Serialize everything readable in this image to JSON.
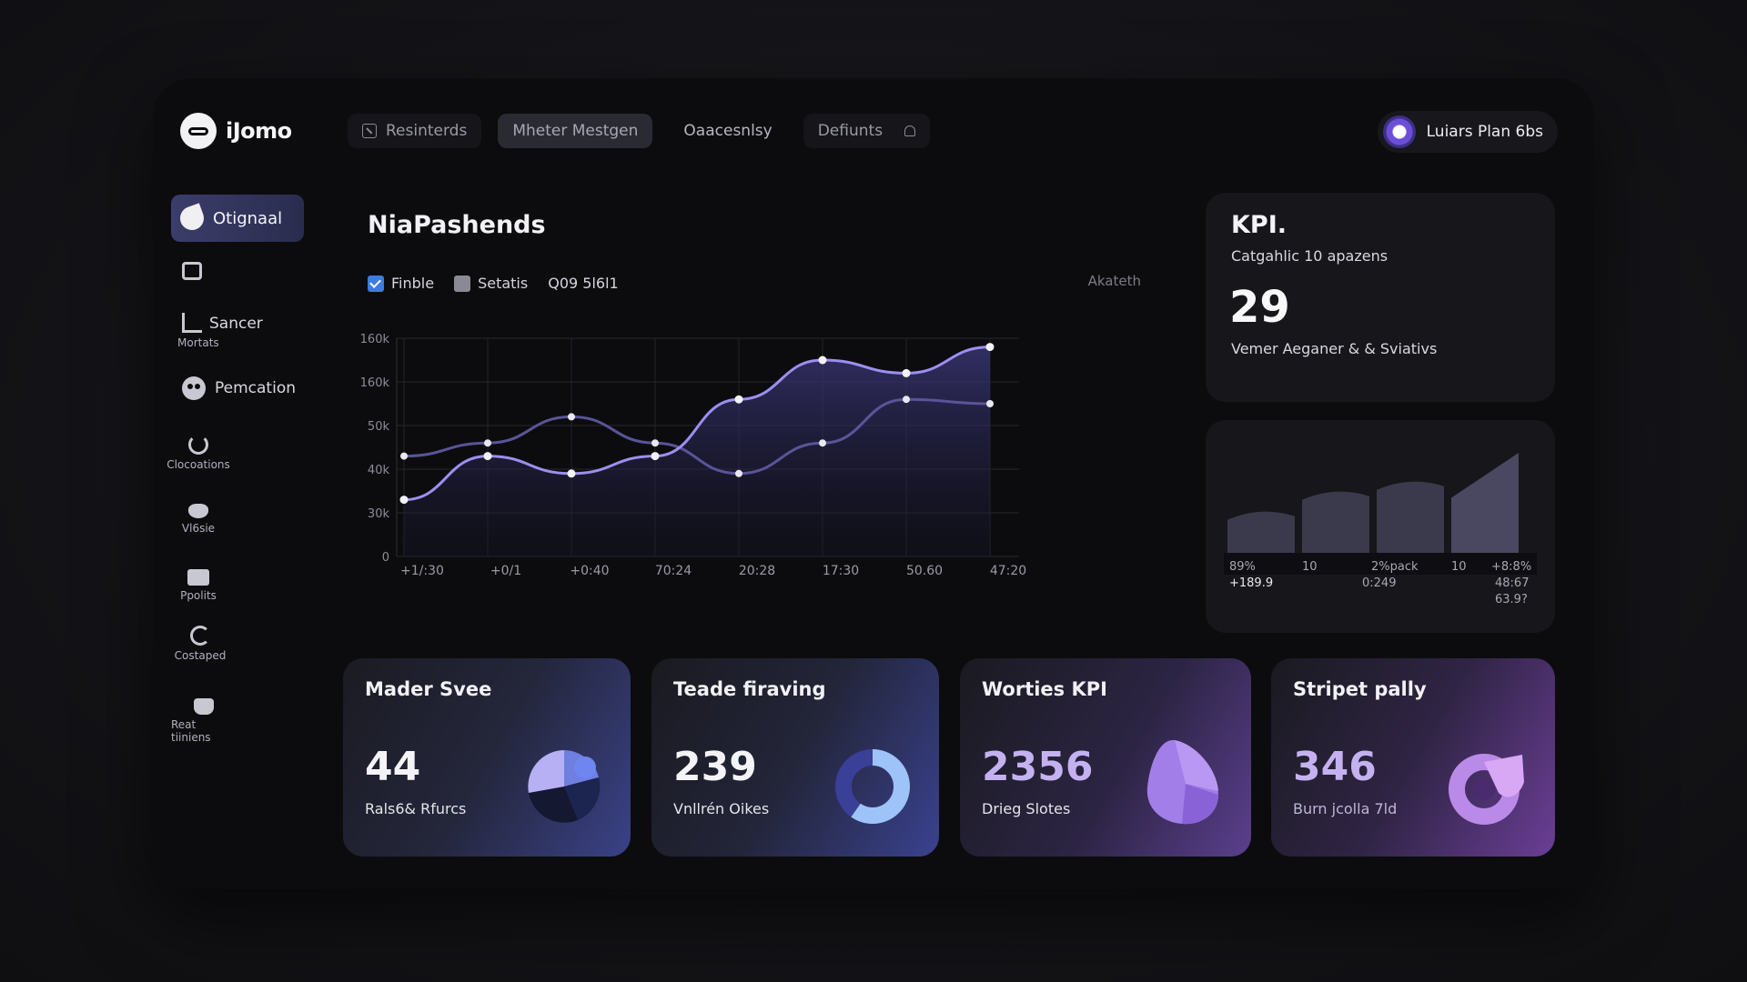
{
  "logo": {
    "text": "iJomo"
  },
  "nav": {
    "tabs": [
      {
        "label": "Resinterds"
      },
      {
        "label": "Mheter Mestgen"
      },
      {
        "label": "Oaacesnlsy"
      },
      {
        "label": "Defiunts"
      }
    ]
  },
  "user": {
    "name": "Luiars Plan 6bs"
  },
  "sidebar": {
    "active": "Otignaal",
    "items": [
      {
        "label": "",
        "icon": "box-icon"
      },
      {
        "label": "Sancer",
        "sub": "Mortats",
        "icon": "chart-icon"
      },
      {
        "label": "Pemcation",
        "icon": "face-icon"
      },
      {
        "label": "",
        "sub": "Clocoations",
        "icon": "power-icon"
      },
      {
        "label": "",
        "sub": "Vl6sie",
        "icon": "paw-icon"
      },
      {
        "label": "",
        "sub": "Ppolits",
        "icon": "bag-icon"
      },
      {
        "label": "",
        "sub": "Costaped",
        "icon": "e-icon"
      },
      {
        "label": "",
        "sub": "Reat tiiniens",
        "icon": "basket-icon"
      }
    ]
  },
  "main": {
    "title": "NiaPashends",
    "legend": [
      {
        "label": "Finble",
        "checked": true
      },
      {
        "label": "Setatis",
        "checked": false
      },
      {
        "label": "Q09 5l6l1"
      }
    ],
    "corner_label": "Akateth"
  },
  "chart_data": {
    "type": "area",
    "x": [
      "+1/:30",
      "+0/1",
      "+0:40",
      "70:24",
      "20:28",
      "17:30",
      "50.60",
      "47:20"
    ],
    "y_ticks": [
      "0",
      "30k",
      "40k",
      "50k",
      "160k",
      "160k"
    ],
    "ylim": [
      0,
      5
    ],
    "series": [
      {
        "values": [
          1.3,
          2.3,
          1.9,
          2.3,
          3.6,
          4.5,
          4.2,
          4.8
        ]
      },
      {
        "values": [
          2.3,
          2.6,
          3.2,
          2.6,
          1.9,
          2.6,
          3.6,
          3.5
        ]
      }
    ]
  },
  "kpi": {
    "title": "KPI.",
    "subtitle": "Catgahlic 10 apazens",
    "value": "29",
    "description": "Vemer Aeganer & & Sviativs"
  },
  "mini": {
    "bars": [
      0.42,
      0.62,
      0.72,
      1.0
    ],
    "labels": [
      "89%",
      "10",
      "2%pack",
      "10",
      "+8:8%"
    ],
    "row2": [
      "+189.9",
      "0:249",
      "48:67"
    ],
    "row3": "63.9?"
  },
  "stats": [
    {
      "title": "Mader Svee",
      "value": "44",
      "label": "Rals6& Rfurcs",
      "viz": "pie"
    },
    {
      "title": "Teade firaving",
      "value": "239",
      "label": "Vnllrén Oikes",
      "viz": "donut"
    },
    {
      "title": "Worties KPI",
      "value": "2356",
      "label": "Drieg Slotes",
      "viz": "blob"
    },
    {
      "title": "Stripet pally",
      "value": "346",
      "label": "Burn jcolla 7ld",
      "viz": "ring"
    }
  ],
  "colors": {
    "accent": "#8b7de8",
    "series1": "#9c8ff0",
    "series2": "#5a5498",
    "card": "#16161b"
  }
}
